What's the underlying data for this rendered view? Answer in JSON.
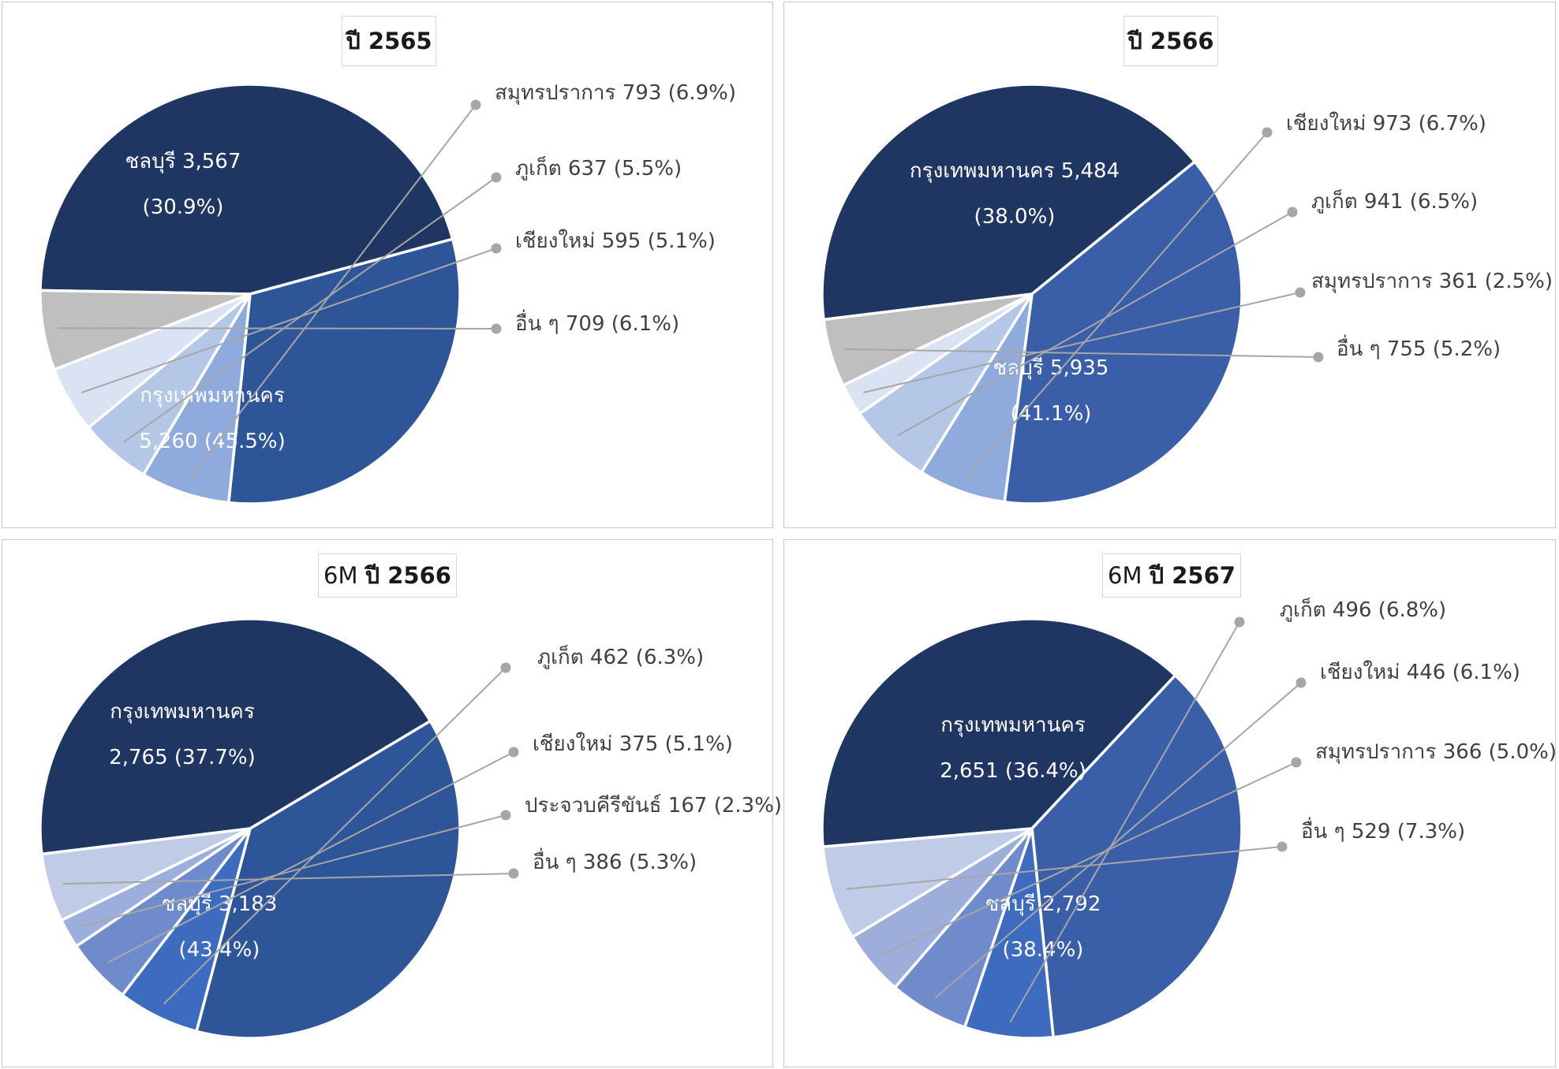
{
  "chart_data": [
    {
      "type": "pie",
      "title": "ปี 2565",
      "slices": [
        {
          "label": "กรุงเทพมหานคร",
          "value": 5260,
          "percent": "45.5%",
          "text": "5,260 (45.5%)",
          "color": "#1f3663"
        },
        {
          "label": "ชลบุรี",
          "value": 3567,
          "percent": "30.9%",
          "text": "3,567 (30.9%)",
          "color": "#2e5597"
        },
        {
          "label": "สมุทรปราการ",
          "value": 793,
          "percent": "6.9%",
          "text": "สมุทรปราการ 793 (6.9%)",
          "color": "#8faadc"
        },
        {
          "label": "ภูเก็ต",
          "value": 637,
          "percent": "5.5%",
          "text": "ภูเก็ต 637 (5.5%)",
          "color": "#b4c7e7"
        },
        {
          "label": "เชียงใหม่",
          "value": 595,
          "percent": "5.1%",
          "text": "เชียงใหม่ 595 (5.1%)",
          "color": "#dae3f3"
        },
        {
          "label": "อื่น ๆ",
          "value": 709,
          "percent": "6.1%",
          "text": "อื่น ๆ 709 (6.1%)",
          "color": "#bfbfbf"
        }
      ]
    },
    {
      "type": "pie",
      "title": "ปี 2566",
      "slices": [
        {
          "label": "ชลบุรี",
          "value": 5935,
          "percent": "41.1%",
          "text": "5,935 (41.1%)",
          "color": "#1f3663"
        },
        {
          "label": "กรุงเทพมหานคร",
          "value": 5484,
          "percent": "38.0%",
          "text": "5,484 (38.0%)",
          "color": "#3a5fa8"
        },
        {
          "label": "เชียงใหม่",
          "value": 973,
          "percent": "6.7%",
          "text": "เชียงใหม่ 973 (6.7%)",
          "color": "#8faadc"
        },
        {
          "label": "ภูเก็ต",
          "value": 941,
          "percent": "6.5%",
          "text": "ภูเก็ต 941 (6.5%)",
          "color": "#b4c7e7"
        },
        {
          "label": "สมุทรปราการ",
          "value": 361,
          "percent": "2.5%",
          "text": "สมุทรปราการ 361 (2.5%)",
          "color": "#dae3f3"
        },
        {
          "label": "อื่น ๆ",
          "value": 755,
          "percent": "5.2%",
          "text": "อื่น ๆ 755 (5.2%)",
          "color": "#bfbfbf"
        }
      ]
    },
    {
      "type": "pie",
      "title": "ปี 2566",
      "title_prefix": "6M",
      "slices": [
        {
          "label": "ชลบุรี",
          "value": 3183,
          "percent": "43.4%",
          "text": "3,183 (43.4%)",
          "color": "#1f3663"
        },
        {
          "label": "กรุงเทพมหานคร",
          "value": 2765,
          "percent": "37.7%",
          "text": "2,765 (37.7%)",
          "color": "#2e5597"
        },
        {
          "label": "ภูเก็ต",
          "value": 462,
          "percent": "6.3%",
          "text": "ภูเก็ต 462 (6.3%)",
          "color": "#3c6bbf"
        },
        {
          "label": "เชียงใหม่",
          "value": 375,
          "percent": "5.1%",
          "text": "เชียงใหม่ 375 (5.1%)",
          "color": "#6f8bcb"
        },
        {
          "label": "ประจวบคีรีขันธ์",
          "value": 167,
          "percent": "2.3%",
          "text": "ประจวบคีรีขันธ์ 167 (2.3%)",
          "color": "#9cafdc"
        },
        {
          "label": "อื่น ๆ",
          "value": 386,
          "percent": "5.3%",
          "text": "อื่น ๆ 386 (5.3%)",
          "color": "#c0cbe6"
        }
      ]
    },
    {
      "type": "pie",
      "title": "ปี 2567",
      "title_prefix": "6M",
      "slices": [
        {
          "label": "ชลบุรี",
          "value": 2792,
          "percent": "38.4%",
          "text": "2,792 (38.4%)",
          "color": "#1f3663"
        },
        {
          "label": "กรุงเทพมหานคร",
          "value": 2651,
          "percent": "36.4%",
          "text": "2,651 (36.4%)",
          "color": "#3a5fa8"
        },
        {
          "label": "ภูเก็ต",
          "value": 496,
          "percent": "6.8%",
          "text": "ภูเก็ต 496 (6.8%)",
          "color": "#3c6bbf"
        },
        {
          "label": "เชียงใหม่",
          "value": 446,
          "percent": "6.1%",
          "text": "เชียงใหม่ 446 (6.1%)",
          "color": "#6f8bcb"
        },
        {
          "label": "สมุทรปราการ",
          "value": 366,
          "percent": "5.0%",
          "text": "สมุทรปราการ 366 (5.0%)",
          "color": "#9eaedb"
        },
        {
          "label": "อื่น ๆ",
          "value": 529,
          "percent": "7.3%",
          "text": "อื่น ๆ 529 (7.3%)",
          "color": "#bfcbe7"
        }
      ]
    }
  ]
}
